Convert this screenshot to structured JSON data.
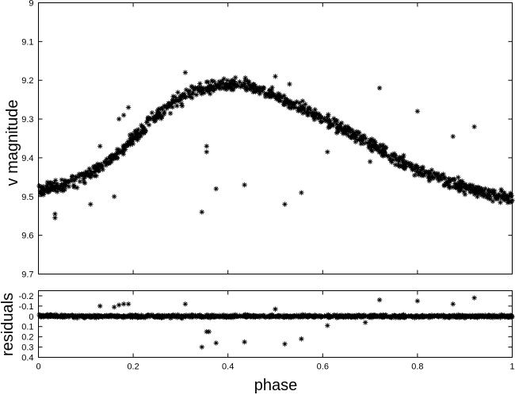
{
  "chart_data": [
    {
      "type": "scatter",
      "marker": "asterisk",
      "marker_color": "#000000",
      "xlabel": "",
      "ylabel": "v magnitude",
      "xlim": [
        0,
        1
      ],
      "ylim": [
        9.7,
        9.0
      ],
      "y_inverted": true,
      "grid": false,
      "xticks": [
        0,
        0.2,
        0.4,
        0.6,
        0.8,
        1
      ],
      "xtick_labels": [
        "",
        "",
        "",
        "",
        "",
        ""
      ],
      "yticks": [
        9,
        9.1,
        9.2,
        9.3,
        9.4,
        9.5,
        9.6,
        9.7
      ],
      "ytick_labels": [
        "9",
        "9.1",
        "9.2",
        "9.3",
        "9.4",
        "9.5",
        "9.6",
        "9.7"
      ],
      "trend": [
        [
          0.0,
          9.49
        ],
        [
          0.05,
          9.475
        ],
        [
          0.1,
          9.445
        ],
        [
          0.15,
          9.41
        ],
        [
          0.2,
          9.35
        ],
        [
          0.25,
          9.29
        ],
        [
          0.3,
          9.245
        ],
        [
          0.35,
          9.22
        ],
        [
          0.4,
          9.21
        ],
        [
          0.45,
          9.218
        ],
        [
          0.5,
          9.24
        ],
        [
          0.55,
          9.27
        ],
        [
          0.6,
          9.3
        ],
        [
          0.65,
          9.33
        ],
        [
          0.7,
          9.365
        ],
        [
          0.75,
          9.4
        ],
        [
          0.8,
          9.43
        ],
        [
          0.85,
          9.455
        ],
        [
          0.9,
          9.475
        ],
        [
          0.95,
          9.495
        ],
        [
          1.0,
          9.505
        ]
      ],
      "scatter_width": 0.022,
      "n_points": 950,
      "outliers": [
        [
          0.13,
          9.37
        ],
        [
          0.17,
          9.3
        ],
        [
          0.18,
          9.29
        ],
        [
          0.19,
          9.27
        ],
        [
          0.16,
          9.5
        ],
        [
          0.31,
          9.18
        ],
        [
          0.345,
          9.54
        ],
        [
          0.355,
          9.37
        ],
        [
          0.355,
          9.385
        ],
        [
          0.375,
          9.48
        ],
        [
          0.435,
          9.47
        ],
        [
          0.52,
          9.52
        ],
        [
          0.555,
          9.49
        ],
        [
          0.61,
          9.385
        ],
        [
          0.72,
          9.22
        ],
        [
          0.8,
          9.28
        ],
        [
          0.875,
          9.345
        ],
        [
          0.92,
          9.32
        ],
        [
          0.035,
          9.555
        ],
        [
          0.035,
          9.545
        ],
        [
          0.11,
          9.52
        ],
        [
          0.22,
          9.32
        ],
        [
          0.5,
          9.19
        ],
        [
          0.53,
          9.21
        ],
        [
          0.7,
          9.41
        ]
      ]
    },
    {
      "type": "scatter",
      "marker": "asterisk",
      "marker_color": "#000000",
      "xlabel": "phase",
      "ylabel": "residuals",
      "xlim": [
        0,
        1
      ],
      "ylim": [
        0.4,
        -0.25
      ],
      "y_inverted": true,
      "grid": false,
      "xticks": [
        0,
        0.2,
        0.4,
        0.6,
        0.8,
        1
      ],
      "xtick_labels": [
        "0",
        "0.2",
        "0.4",
        "0.6",
        "0.8",
        "1"
      ],
      "yticks": [
        -0.2,
        -0.1,
        0,
        0.1,
        0.2,
        0.3,
        0.4
      ],
      "ytick_labels": [
        "-0.2",
        "-0.1",
        "0",
        "0.1",
        "0.2",
        "0.3",
        "0.4"
      ],
      "scatter_width": 0.018,
      "n_points": 950,
      "outliers": [
        [
          0.13,
          -0.1
        ],
        [
          0.17,
          -0.11
        ],
        [
          0.18,
          -0.12
        ],
        [
          0.19,
          -0.12
        ],
        [
          0.16,
          -0.09
        ],
        [
          0.31,
          -0.12
        ],
        [
          0.345,
          0.3
        ],
        [
          0.355,
          0.15
        ],
        [
          0.36,
          0.15
        ],
        [
          0.375,
          0.26
        ],
        [
          0.435,
          0.25
        ],
        [
          0.52,
          0.27
        ],
        [
          0.555,
          0.22
        ],
        [
          0.61,
          0.09
        ],
        [
          0.69,
          0.06
        ],
        [
          0.72,
          -0.16
        ],
        [
          0.8,
          -0.15
        ],
        [
          0.875,
          -0.12
        ],
        [
          0.92,
          -0.18
        ],
        [
          0.5,
          -0.07
        ]
      ]
    }
  ]
}
